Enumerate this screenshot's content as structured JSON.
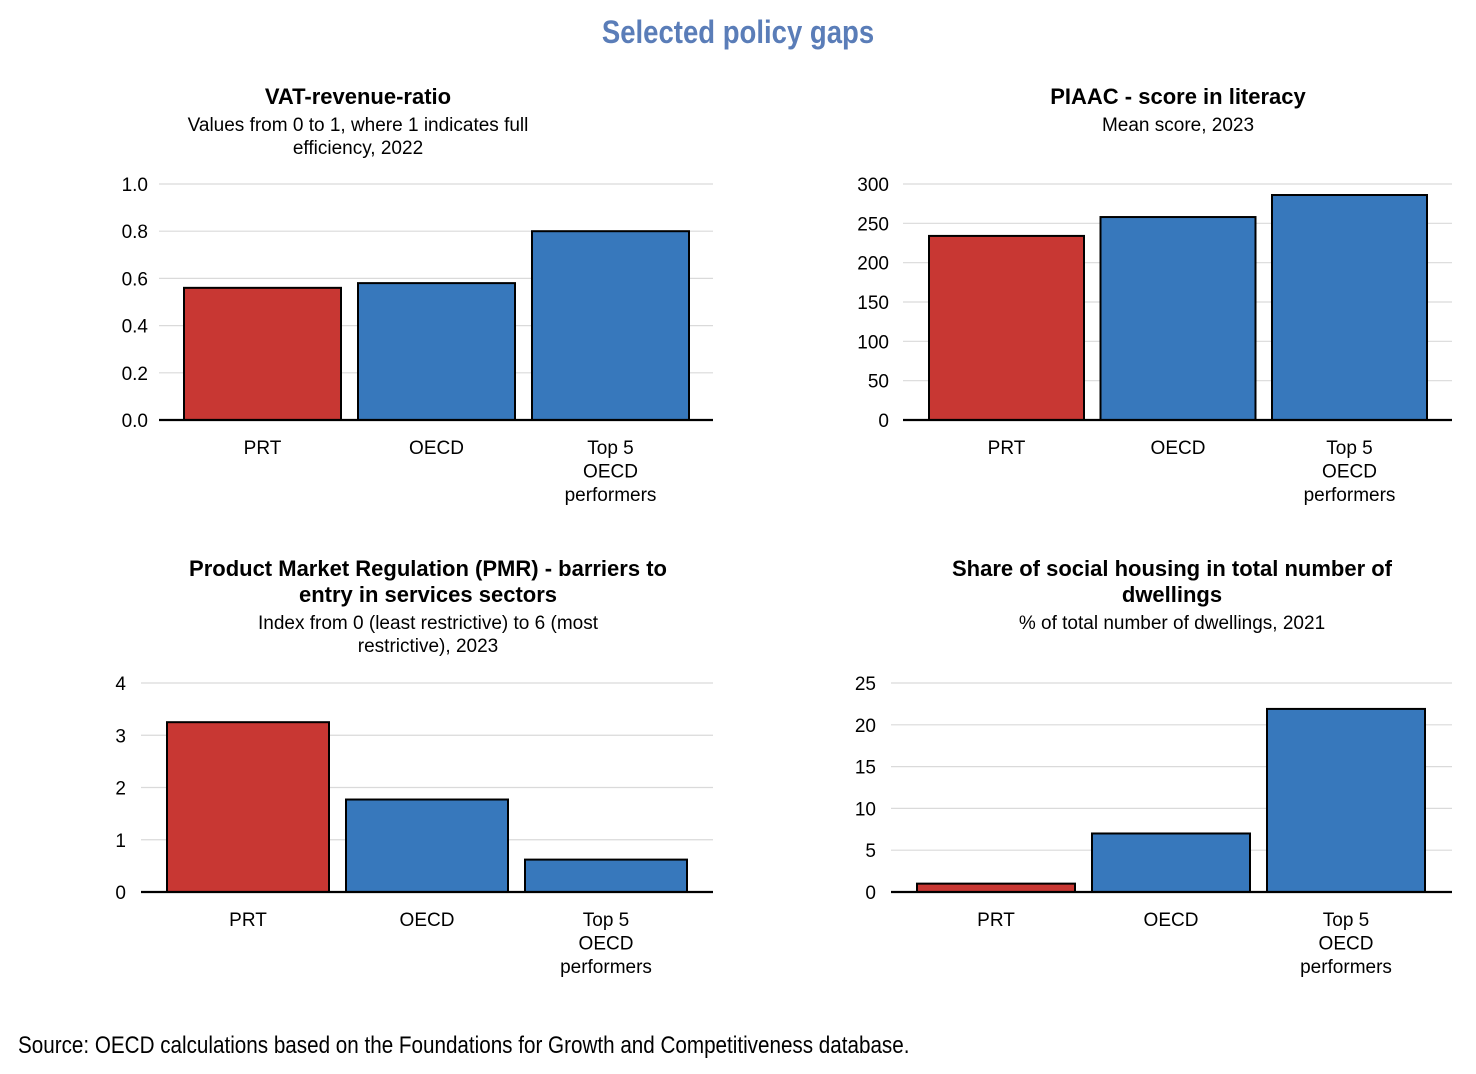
{
  "title": "Selected policy gaps",
  "source": "Source: OECD calculations based on the Foundations for Growth and Competitiveness database.",
  "colors": {
    "highlight": "#C83733",
    "default": "#3778BC",
    "title": "#5A7DB8",
    "grid": "#DADADA"
  },
  "chart_data": [
    {
      "type": "bar",
      "title": "VAT-revenue-ratio",
      "subtitle": [
        "Values from 0 to 1, where 1 indicates full",
        "efficiency, 2022"
      ],
      "categories": [
        [
          "PRT"
        ],
        [
          "OECD"
        ],
        [
          "Top 5",
          "OECD",
          "performers"
        ]
      ],
      "values": [
        0.56,
        0.58,
        0.8
      ],
      "highlight": [
        true,
        false,
        false
      ],
      "ylim": [
        0,
        1.0
      ],
      "yticks": [
        0.0,
        0.2,
        0.4,
        0.6,
        0.8,
        1.0
      ],
      "ytick_labels": [
        "0.0",
        "0.2",
        "0.4",
        "0.6",
        "0.8",
        "1.0"
      ],
      "xlabel": "",
      "ylabel": "",
      "grid": true
    },
    {
      "type": "bar",
      "title": "PIAAC - score in literacy",
      "subtitle": [
        "Mean score, 2023"
      ],
      "categories": [
        [
          "PRT"
        ],
        [
          "OECD"
        ],
        [
          "Top 5",
          "OECD",
          "performers"
        ]
      ],
      "values": [
        234,
        258,
        286
      ],
      "highlight": [
        true,
        false,
        false
      ],
      "ylim": [
        0,
        300
      ],
      "yticks": [
        0,
        50,
        100,
        150,
        200,
        250,
        300
      ],
      "ytick_labels": [
        "0",
        "50",
        "100",
        "150",
        "200",
        "250",
        "300"
      ],
      "xlabel": "",
      "ylabel": "",
      "grid": true
    },
    {
      "type": "bar",
      "title": [
        "Product Market Regulation (PMR) - barriers to",
        "entry in services sectors"
      ],
      "subtitle": [
        "Index from 0 (least restrictive) to 6 (most",
        "restrictive), 2023"
      ],
      "categories": [
        [
          "PRT"
        ],
        [
          "OECD"
        ],
        [
          "Top 5",
          "OECD",
          "performers"
        ]
      ],
      "values": [
        3.25,
        1.77,
        0.62
      ],
      "highlight": [
        true,
        false,
        false
      ],
      "ylim": [
        0,
        4
      ],
      "yticks": [
        0,
        1,
        2,
        3,
        4
      ],
      "ytick_labels": [
        "0",
        "1",
        "2",
        "3",
        "4"
      ],
      "xlabel": "",
      "ylabel": "",
      "grid": true
    },
    {
      "type": "bar",
      "title": [
        "Share of social housing in total number of",
        "dwellings"
      ],
      "subtitle": [
        "% of total number of dwellings, 2021"
      ],
      "categories": [
        [
          "PRT"
        ],
        [
          "OECD"
        ],
        [
          "Top 5",
          "OECD",
          "performers"
        ]
      ],
      "values": [
        1.0,
        7.0,
        21.9
      ],
      "highlight": [
        true,
        false,
        false
      ],
      "ylim": [
        0,
        25
      ],
      "yticks": [
        0,
        5,
        10,
        15,
        20,
        25
      ],
      "ytick_labels": [
        "0",
        "5",
        "10",
        "15",
        "20",
        "25"
      ],
      "xlabel": "",
      "ylabel": "",
      "grid": true
    }
  ]
}
